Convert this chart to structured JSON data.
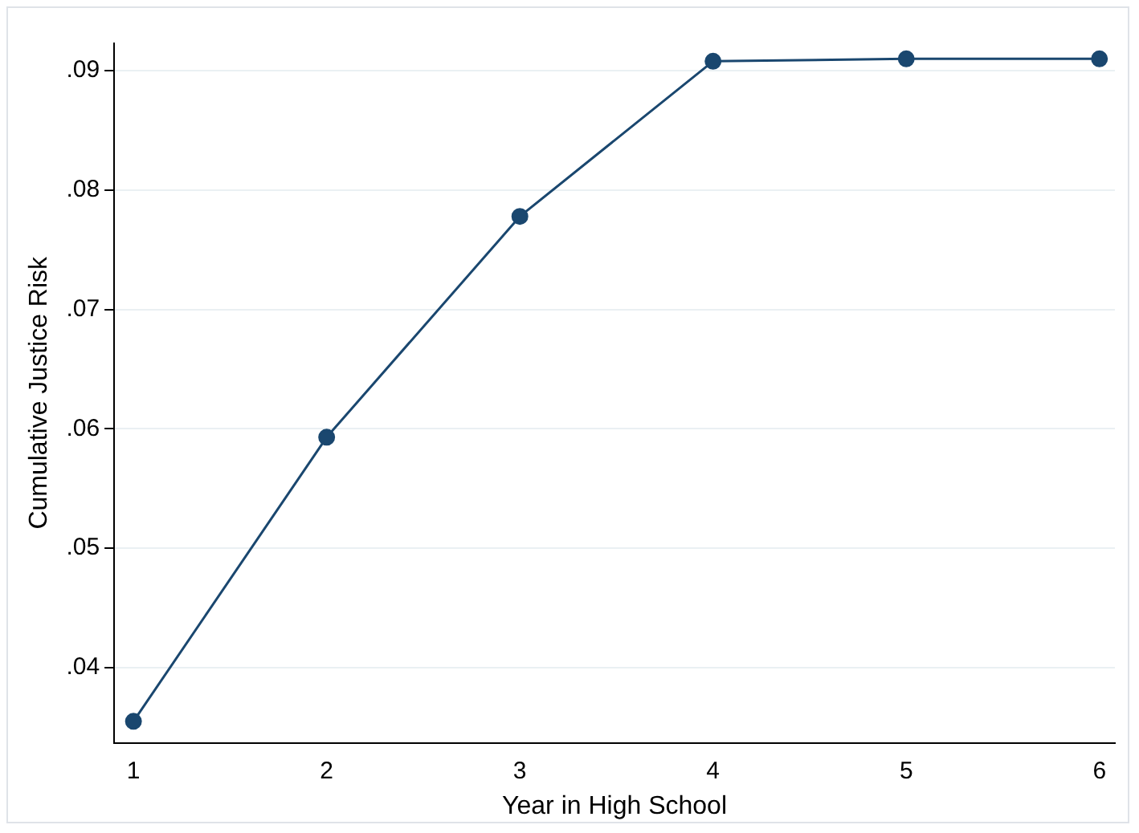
{
  "chart_data": {
    "type": "line",
    "xlabel": "Year in High School",
    "ylabel": "Cumulative Justice Risk",
    "x": [
      1,
      2,
      3,
      4,
      5,
      6
    ],
    "series": [
      {
        "color": "#1a476f",
        "values": [
          0.0355,
          0.0593,
          0.0778,
          0.0908,
          0.091,
          0.091
        ]
      }
    ],
    "xlim": [
      0.9,
      6.08
    ],
    "xticks": [
      1,
      2,
      3,
      4,
      5,
      6
    ],
    "ylim": [
      0.0337,
      0.0923
    ],
    "yticks": [
      {
        "value": 0.04,
        "label": ".04"
      },
      {
        "value": 0.05,
        "label": ".05"
      },
      {
        "value": 0.06,
        "label": ".06"
      },
      {
        "value": 0.07,
        "label": ".07"
      },
      {
        "value": 0.08,
        "label": ".08"
      },
      {
        "value": 0.09,
        "label": ".09"
      }
    ],
    "grid": "y",
    "marker": "circle",
    "legend": false
  }
}
